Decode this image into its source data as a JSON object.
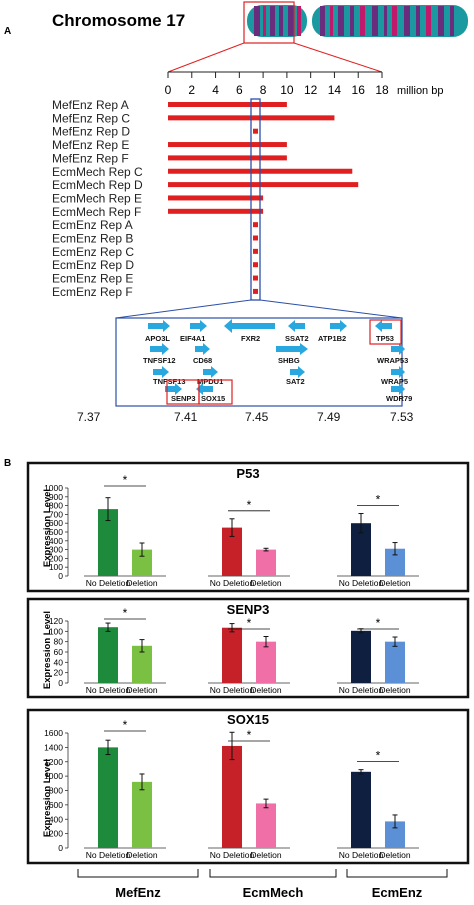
{
  "panel_a": {
    "label": "A",
    "title": "Chromosome 17",
    "axis_ticks": [
      "0",
      "2",
      "4",
      "6",
      "8",
      "10",
      "12",
      "14",
      "16",
      "18"
    ],
    "axis_unit": "million bp",
    "samples": [
      {
        "name": "MefEnz Rep A",
        "start": 0,
        "end": 10
      },
      {
        "name": "MefEnz Rep C",
        "start": 0,
        "end": 14
      },
      {
        "name": "MefEnz Rep D",
        "start": 7,
        "end": 8
      },
      {
        "name": "MefEnz Rep E",
        "start": 0,
        "end": 10
      },
      {
        "name": "MefEnz Rep F",
        "start": 0,
        "end": 10
      },
      {
        "name": "EcmMech Rep C",
        "start": 0,
        "end": 15.5
      },
      {
        "name": "EcmMech Rep D",
        "start": 0,
        "end": 16
      },
      {
        "name": "EcmMech Rep E",
        "start": 0,
        "end": 8
      },
      {
        "name": "EcmMech Rep F",
        "start": 0,
        "end": 8
      },
      {
        "name": "EcmEnz Rep A",
        "start": 7.5,
        "end": 8
      },
      {
        "name": "EcmEnz Rep B",
        "start": 7.5,
        "end": 8
      },
      {
        "name": "EcmEnz Rep C",
        "start": 7.5,
        "end": 8
      },
      {
        "name": "EcmEnz Rep D",
        "start": 7.5,
        "end": 8
      },
      {
        "name": "EcmEnz Rep E",
        "start": 7.5,
        "end": 8
      },
      {
        "name": "EcmEnz Rep F",
        "start": 7.5,
        "end": 8
      }
    ],
    "zoom_ticks": [
      "7.37",
      "7.41",
      "7.45",
      "7.49",
      "7.53"
    ],
    "genes": [
      "APO3L",
      "EIF4A1",
      "FXR2",
      "SSAT2",
      "ATP1B2",
      "TP53",
      "TNFSF12",
      "CD68",
      "SHBG",
      "WRAP53",
      "TNFSF13",
      "MPDU1",
      "SAT2",
      "WRAP5",
      "SENP3",
      "SOX15",
      "WDR79"
    ],
    "boxed_genes": [
      "TP53",
      "SENP3",
      "SOX15"
    ]
  },
  "panel_b": {
    "label": "B",
    "ylabel": "Expression Level",
    "categories": [
      "No Deletion",
      "Deletion"
    ],
    "star": "*",
    "group_labels": [
      "MefEnz",
      "EcmMech",
      "EcmEnz"
    ],
    "colors": {
      "mefenz": [
        "#1e8a3c",
        "#7ac143"
      ],
      "ecmmech": [
        "#c62128",
        "#f06fa6"
      ],
      "ecmenz": [
        "#0f1f3f",
        "#5b8fd6"
      ],
      "red": "#e02020",
      "blue": "#2b4fa8",
      "arrow": "#29a8e0",
      "chr_teal": "#1a9aa0",
      "chr_purple": "#6a2c7c",
      "chr_magenta": "#c0186a"
    }
  },
  "chart_data": [
    {
      "type": "bar",
      "title": "P53",
      "ylabel": "Expression Level",
      "ylim": [
        0,
        1000
      ],
      "ticks": [
        "0",
        "100",
        "200",
        "300",
        "400",
        "500",
        "600",
        "700",
        "800",
        "900",
        "1000"
      ],
      "categories": [
        "No Deletion",
        "Deletion"
      ],
      "groups": [
        {
          "values": [
            760,
            300
          ],
          "errors": [
            130,
            75
          ]
        },
        {
          "values": [
            550,
            300
          ],
          "errors": [
            100,
            15
          ]
        },
        {
          "values": [
            600,
            310
          ],
          "errors": [
            110,
            70
          ]
        }
      ]
    },
    {
      "type": "bar",
      "title": "SENP3",
      "ylabel": "Expression Level",
      "ylim": [
        0,
        120
      ],
      "ticks": [
        "0",
        "20",
        "40",
        "60",
        "80",
        "100",
        "120"
      ],
      "categories": [
        "No Deletion",
        "Deletion"
      ],
      "groups": [
        {
          "values": [
            108,
            72
          ],
          "errors": [
            8,
            12
          ]
        },
        {
          "values": [
            107,
            80
          ],
          "errors": [
            8,
            10
          ]
        },
        {
          "values": [
            101,
            80
          ],
          "errors": [
            4,
            9
          ]
        }
      ]
    },
    {
      "type": "bar",
      "title": "SOX15",
      "ylabel": "Expression Level",
      "ylim": [
        0,
        1600
      ],
      "ticks": [
        "0",
        "200",
        "400",
        "600",
        "800",
        "1000",
        "1200",
        "1400",
        "1600"
      ],
      "categories": [
        "No Deletion",
        "Deletion"
      ],
      "groups": [
        {
          "values": [
            1400,
            920
          ],
          "errors": [
            100,
            110
          ]
        },
        {
          "values": [
            1420,
            620
          ],
          "errors": [
            190,
            60
          ]
        },
        {
          "values": [
            1060,
            370
          ],
          "errors": [
            30,
            90
          ]
        }
      ]
    }
  ]
}
